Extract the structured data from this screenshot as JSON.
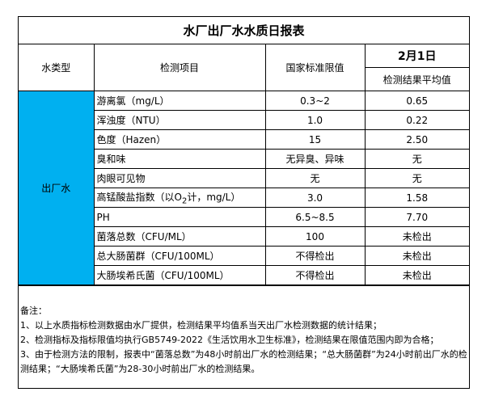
{
  "title": "水厂出厂水水质日报表",
  "headers": {
    "water_type": "水类型",
    "item": "检测项目",
    "standard": "国家标准限值",
    "date": "2月1日",
    "result": "检测结果平均值"
  },
  "water_type": "出厂水",
  "type_color": "#00B0F0",
  "rows": [
    {
      "item": "游离氯（mg/L）",
      "standard": "0.3~2",
      "result": "0.65"
    },
    {
      "item": "浑浊度（NTU）",
      "standard": "1.0",
      "result": "0.22"
    },
    {
      "item": "色度（Hazen）",
      "standard": "15",
      "result": "2.50"
    },
    {
      "item": "臭和味",
      "standard": "无异臭、异味",
      "result": "无"
    },
    {
      "item": "肉眼可见物",
      "standard": "无",
      "result": "无"
    },
    {
      "item_pre": "高锰酸盐指数（以O",
      "item_sub": "2",
      "item_post": "计，mg/L）",
      "standard": "3.0",
      "result": "1.58"
    },
    {
      "item": "PH",
      "standard": "6.5~8.5",
      "result": "7.70"
    },
    {
      "item": "菌落总数（CFU/ML）",
      "standard": "100",
      "result": "未检出"
    },
    {
      "item": "总大肠菌群（CFU/100ML）",
      "standard": "不得检出",
      "result": "未检出"
    },
    {
      "item": "大肠埃希氏菌（CFU/100ML）",
      "standard": "不得检出",
      "result": "未检出"
    }
  ],
  "notes": {
    "heading": "备注：",
    "lines": [
      "1、以上水质指标检测数据由水厂提供，检测结果平均值系当天出厂水检测数据的统计结果；",
      "2、检测指标及指标限值均执行GB5749-2022《生活饮用水卫生标准》，检测结果在限值范围内即为合格；",
      "3、由于检测方法的限制，报表中“菌落总数”为48小时前出厂水的检测结果；“总大肠菌群”为24小时前出厂水的检测结果；“大肠埃希氏菌”为28-30小时前出厂水的检测结果。"
    ]
  }
}
